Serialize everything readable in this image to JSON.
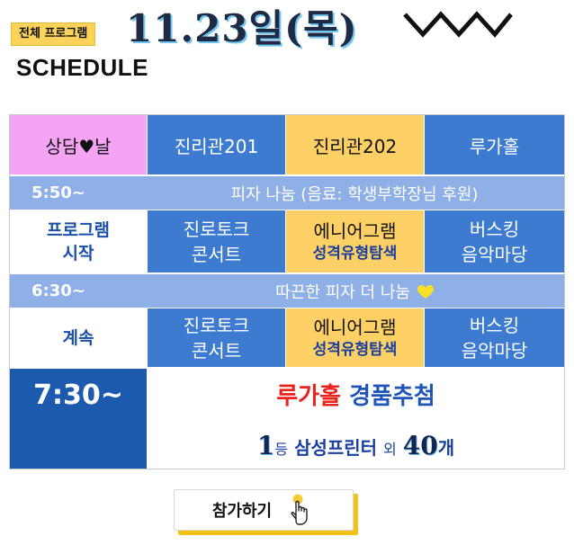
{
  "header": {
    "badge": "전체 프로그램",
    "date_title": "11.23일(목)",
    "section_label": "SCHEDULE"
  },
  "table": {
    "columns": [
      "상담♥날",
      "진리관201",
      "진리관202",
      "루가홀"
    ],
    "rows": [
      {
        "time": "5:50~",
        "band": "피자 나눔 (음료: 학생부학장님 후원)"
      },
      {
        "label_lines": [
          "프로그램",
          "시작"
        ],
        "cells": [
          {
            "lines": [
              "진로토크",
              "콘서트"
            ]
          },
          {
            "title": "에니어그램",
            "subtitle": "성격유형탐색"
          },
          {
            "lines": [
              "버스킹",
              "음악마당"
            ]
          }
        ]
      },
      {
        "time": "6:30~",
        "band": "따끈한 피자 더 나눔",
        "band_icon": "yellow-heart-icon"
      },
      {
        "label": "계속",
        "cells": [
          {
            "lines": [
              "진로토크",
              "콘서트"
            ]
          },
          {
            "title": "에니어그램",
            "subtitle": "성격유형탐색"
          },
          {
            "lines": [
              "버스킹",
              "음악마당"
            ]
          }
        ]
      },
      {
        "time": "7:30~",
        "prize_title_red": "루가홀",
        "prize_title_blue": "경품추첨",
        "prize_rank_number": "1",
        "prize_rank_suffix": "등",
        "prize_item": "삼성프린터",
        "prize_extra_word": "외",
        "prize_count": "40",
        "prize_count_unit": "개"
      }
    ]
  },
  "join_button": {
    "label": "참가하기",
    "icon": "pointing-hand-icon"
  },
  "colors": {
    "accent_yellow": "#fdd065",
    "pink": "#f4a3f5",
    "blue": "#3d7bd1",
    "dark_blue": "#1c5aae",
    "light_band": "#8fb0e6",
    "prize_red": "#e8231c"
  }
}
